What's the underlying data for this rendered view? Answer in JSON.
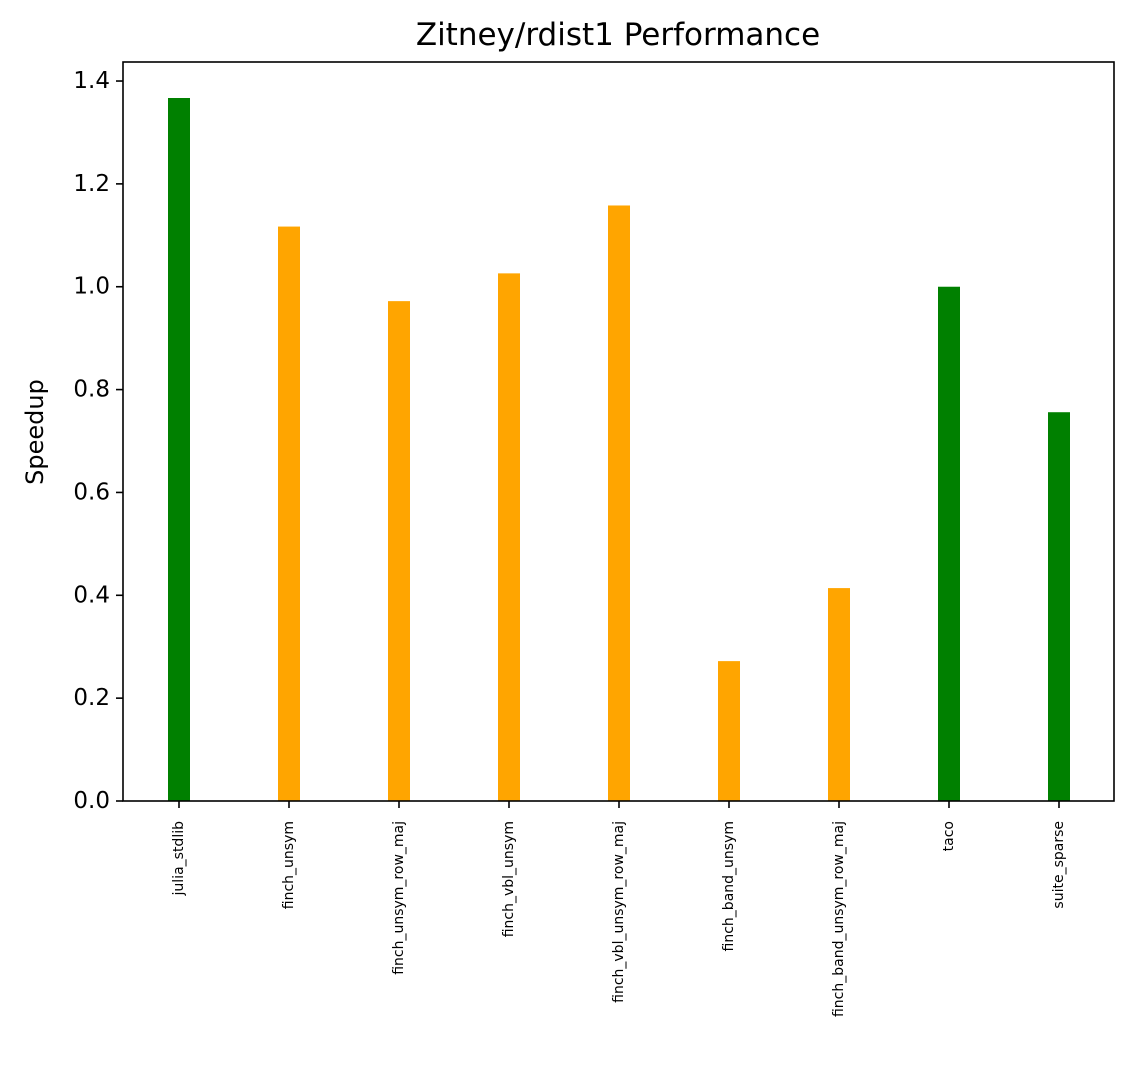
{
  "chart_data": {
    "type": "bar",
    "title": "Zitney/rdist1 Performance",
    "xlabel": "",
    "ylabel": "Speedup",
    "ylim": [
      0,
      1.4
    ],
    "yticks": [
      "0.0",
      "0.2",
      "0.4",
      "0.6",
      "0.8",
      "1.0",
      "1.2",
      "1.4"
    ],
    "grid": false,
    "categories": [
      "julia_stdlib",
      "finch_unsym",
      "finch_unsym_row_maj",
      "finch_vbl_unsym",
      "finch_vbl_unsym_row_maj",
      "finch_band_unsym",
      "finch_band_unsym_row_maj",
      "taco",
      "suite_sparse"
    ],
    "values": [
      1.367,
      1.117,
      0.972,
      1.026,
      1.158,
      0.272,
      0.414,
      1.0,
      0.756
    ],
    "colors": [
      "#008000",
      "#ffa500",
      "#ffa500",
      "#ffa500",
      "#ffa500",
      "#ffa500",
      "#ffa500",
      "#008000",
      "#008000"
    ]
  }
}
